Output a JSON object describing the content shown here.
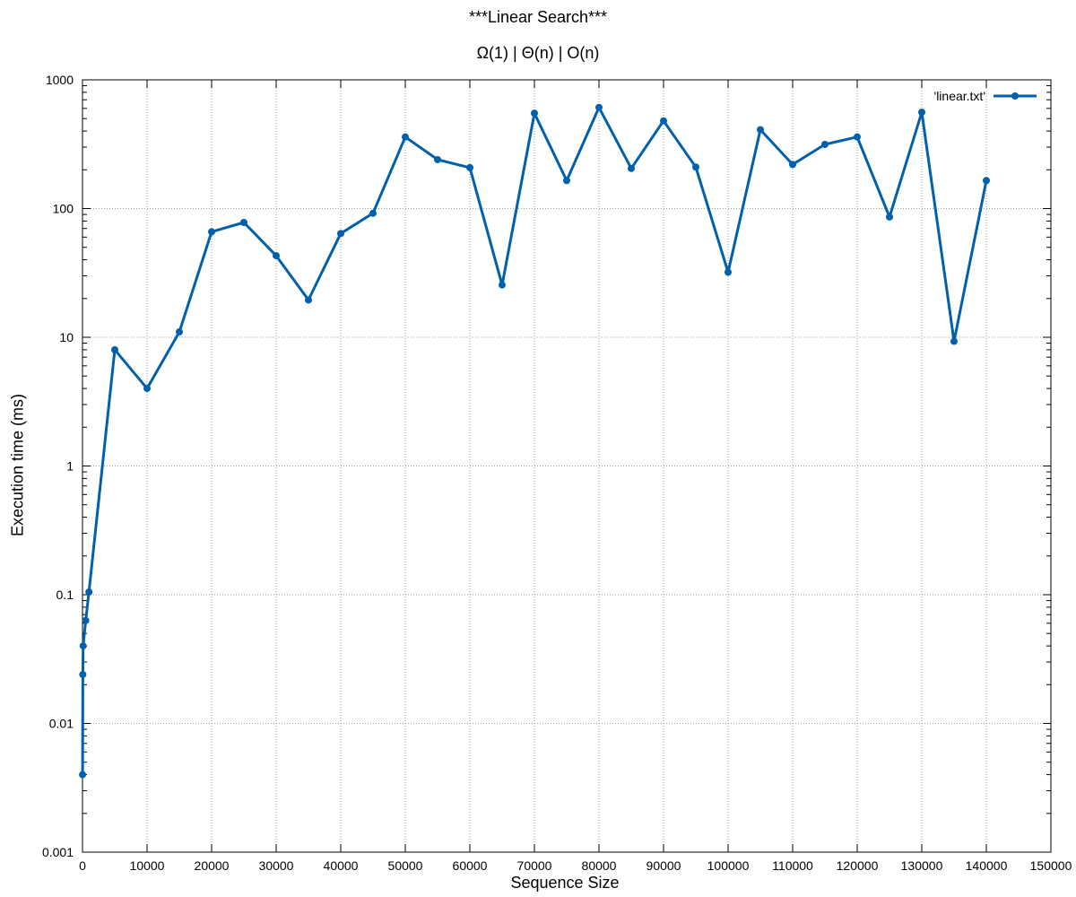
{
  "chart_data": {
    "type": "line",
    "title": "***Linear Search***",
    "subtitle": "Ω(1) | Θ(n) | O(n)",
    "xlabel": "Sequence Size",
    "ylabel": "Execution time (ms)",
    "xlim": [
      0,
      150000
    ],
    "ylim": [
      0.001,
      1000
    ],
    "yscale": "log",
    "grid": true,
    "legend_position": "top-right",
    "x_ticks": [
      0,
      10000,
      20000,
      30000,
      40000,
      50000,
      60000,
      70000,
      80000,
      90000,
      100000,
      110000,
      120000,
      130000,
      140000,
      150000
    ],
    "x_tick_labels": [
      "0",
      "10000",
      "20000",
      "30000",
      "40000",
      "50000",
      "60000",
      "70000",
      "80000",
      "90000",
      "100000",
      "110000",
      "120000",
      "130000",
      "140000",
      "150000"
    ],
    "y_ticks": [
      0.001,
      0.01,
      0.1,
      1,
      10,
      100,
      1000
    ],
    "y_tick_labels": [
      "0.001",
      "0.01",
      "0.1",
      "1",
      "10",
      "100",
      "1000"
    ],
    "series": [
      {
        "name": "'linear.txt'",
        "color": "#0060ad",
        "x": [
          10,
          50,
          100,
          500,
          1000,
          5000,
          10000,
          15000,
          20000,
          25000,
          30000,
          35000,
          40000,
          45000,
          50000,
          55000,
          60000,
          65000,
          70000,
          75000,
          80000,
          85000,
          90000,
          95000,
          100000,
          105000,
          110000,
          115000,
          120000,
          125000,
          130000,
          135000,
          140000
        ],
        "y": [
          0.004,
          0.024,
          0.04,
          0.063,
          0.105,
          8,
          4,
          11,
          66,
          78,
          43,
          19.5,
          64,
          92,
          360,
          240,
          208,
          25.5,
          550,
          165,
          610,
          205,
          480,
          210,
          32,
          410,
          220,
          315,
          360,
          86,
          560,
          9.3,
          165
        ]
      }
    ]
  }
}
